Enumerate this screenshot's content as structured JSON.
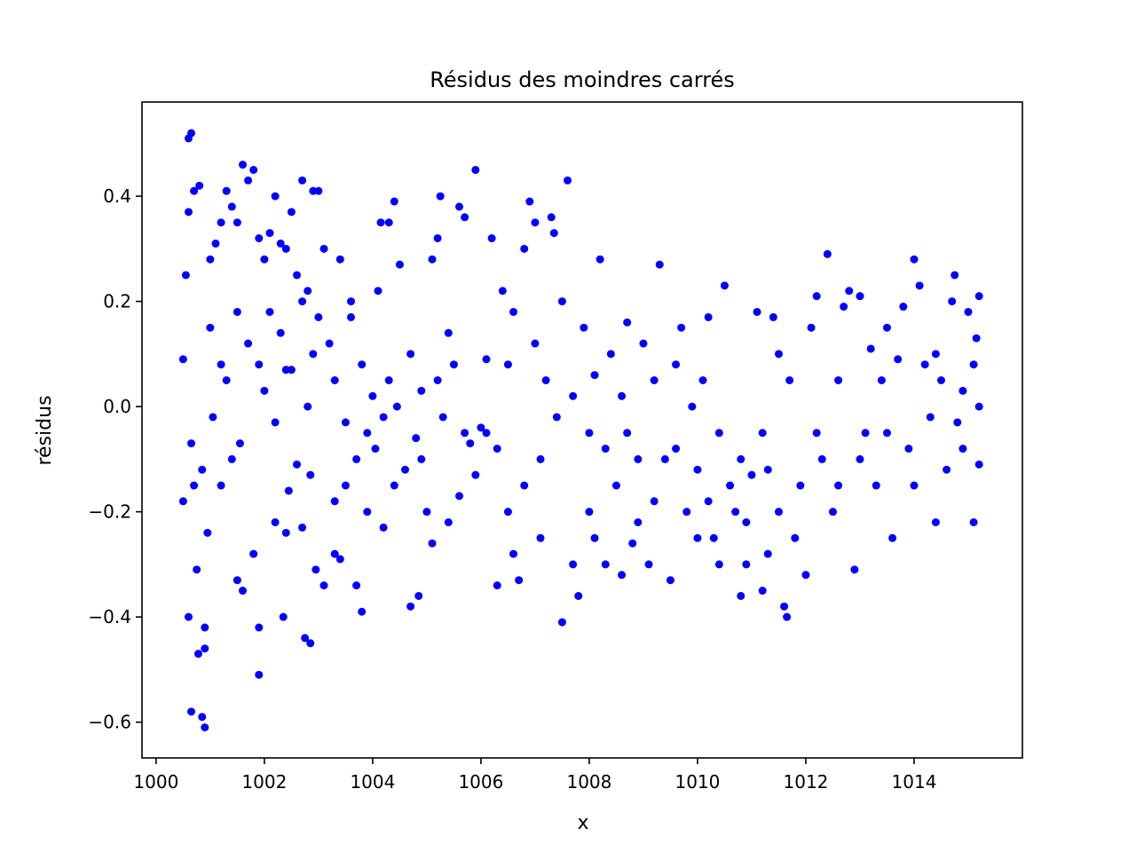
{
  "chart_data": {
    "type": "scatter",
    "title": "Résidus des moindres carrés",
    "xlabel": "x",
    "ylabel": "résidus",
    "color": "#0000ff",
    "x": [
      1000.5,
      1000.55,
      1000.6,
      1000.65,
      1000.6,
      1000.7,
      1000.8,
      1000.6,
      1000.65,
      1000.85,
      1000.9,
      1000.78,
      1000.9,
      1000.9,
      1000.75,
      1000.95,
      1000.5,
      1000.7,
      1000.65,
      1000.85,
      1001.0,
      1001.1,
      1001.2,
      1001.3,
      1001.4,
      1001.5,
      1001.6,
      1001.7,
      1001.8,
      1001.9,
      1002.0,
      1002.1,
      1002.2,
      1002.3,
      1002.4,
      1002.5,
      1002.6,
      1002.7,
      1002.8,
      1002.9,
      1003.0,
      1003.1,
      1001.0,
      1001.2,
      1001.3,
      1001.5,
      1001.7,
      1001.9,
      1002.1,
      1002.3,
      1002.5,
      1002.7,
      1002.9,
      1003.0,
      1001.05,
      1001.2,
      1001.4,
      1001.5,
      1001.6,
      1001.8,
      1001.9,
      1001.9,
      1002.2,
      1002.35,
      1002.4,
      1002.45,
      1002.7,
      1002.75,
      1002.85,
      1002.95,
      1003.1,
      1003.3,
      1003.4,
      1002.6,
      1002.85,
      1001.55,
      1002.0,
      1002.2,
      1002.4,
      1002.8,
      1003.2,
      1003.3,
      1003.5,
      1003.6,
      1003.7,
      1003.8,
      1003.9,
      1004.0,
      1004.1,
      1004.2,
      1004.3,
      1004.15,
      1004.3,
      1004.4,
      1004.5,
      1004.6,
      1004.7,
      1004.8,
      1004.9,
      1005.0,
      1005.1,
      1005.2,
      1005.25,
      1005.3,
      1005.4,
      1005.5,
      1005.6,
      1005.7,
      1005.8,
      1005.9,
      1006.0,
      1003.3,
      1003.5,
      1003.7,
      1003.8,
      1003.9,
      1004.2,
      1004.4,
      1004.7,
      1004.85,
      1005.1,
      1005.4,
      1005.6,
      1005.9,
      1003.4,
      1003.6,
      1004.05,
      1004.45,
      1004.9,
      1005.2,
      1005.7,
      1006.1,
      1006.2,
      1006.3,
      1006.4,
      1006.5,
      1006.6,
      1006.7,
      1006.8,
      1006.9,
      1007.0,
      1007.1,
      1007.2,
      1007.3,
      1007.35,
      1007.5,
      1007.6,
      1007.7,
      1007.8,
      1007.9,
      1008.0,
      1008.1,
      1008.2,
      1008.3,
      1008.4,
      1008.5,
      1008.6,
      1008.7,
      1008.8,
      1008.9,
      1009.0,
      1006.3,
      1006.5,
      1006.8,
      1007.1,
      1007.4,
      1007.7,
      1008.0,
      1008.3,
      1008.6,
      1008.9,
      1006.1,
      1006.6,
      1007.0,
      1007.5,
      1008.1,
      1008.7,
      1009.1,
      1009.2,
      1009.3,
      1009.4,
      1009.5,
      1009.6,
      1009.7,
      1009.8,
      1009.9,
      1010.0,
      1010.1,
      1010.2,
      1010.3,
      1010.4,
      1010.5,
      1010.6,
      1010.7,
      1010.8,
      1010.9,
      1011.0,
      1011.1,
      1011.2,
      1011.3,
      1011.4,
      1011.5,
      1011.6,
      1011.65,
      1011.7,
      1011.8,
      1011.9,
      1009.2,
      1009.6,
      1010.0,
      1010.4,
      1010.8,
      1011.2,
      1011.5,
      1010.2,
      1010.9,
      1011.3,
      1012.0,
      1012.1,
      1012.2,
      1012.3,
      1012.4,
      1012.5,
      1012.6,
      1012.7,
      1012.8,
      1012.9,
      1013.0,
      1013.1,
      1013.2,
      1013.3,
      1013.4,
      1013.5,
      1013.6,
      1013.7,
      1013.8,
      1013.9,
      1014.0,
      1014.1,
      1014.2,
      1014.3,
      1014.4,
      1014.5,
      1014.6,
      1014.7,
      1014.75,
      1014.8,
      1014.9,
      1015.0,
      1015.1,
      1015.15,
      1015.2,
      1015.2,
      1015.2,
      1012.2,
      1012.6,
      1013.0,
      1013.5,
      1014.0,
      1014.4,
      1014.9,
      1015.1
    ],
    "values": [
      0.09,
      0.25,
      0.51,
      0.52,
      0.37,
      0.41,
      0.42,
      -0.4,
      -0.58,
      -0.59,
      -0.61,
      -0.47,
      -0.42,
      -0.46,
      -0.31,
      -0.24,
      -0.18,
      -0.15,
      -0.07,
      -0.12,
      0.28,
      0.31,
      0.35,
      0.41,
      0.38,
      0.35,
      0.46,
      0.43,
      0.45,
      0.32,
      0.28,
      0.33,
      0.4,
      0.31,
      0.3,
      0.37,
      0.25,
      0.43,
      0.22,
      0.41,
      0.41,
      0.3,
      0.15,
      0.08,
      0.05,
      0.18,
      0.12,
      0.08,
      0.18,
      0.14,
      0.07,
      0.2,
      0.1,
      0.17,
      -0.02,
      -0.15,
      -0.1,
      -0.33,
      -0.35,
      -0.28,
      -0.42,
      -0.51,
      -0.22,
      -0.4,
      -0.24,
      -0.16,
      -0.23,
      -0.44,
      -0.45,
      -0.31,
      -0.34,
      -0.28,
      -0.29,
      -0.11,
      -0.13,
      -0.07,
      0.03,
      -0.03,
      0.07,
      0.0,
      0.12,
      0.05,
      -0.03,
      0.17,
      -0.1,
      0.08,
      -0.05,
      0.02,
      0.22,
      -0.02,
      0.05,
      0.35,
      0.35,
      0.39,
      0.27,
      -0.12,
      0.1,
      -0.06,
      0.03,
      -0.2,
      0.28,
      0.32,
      0.4,
      -0.02,
      0.14,
      0.08,
      0.38,
      0.36,
      -0.07,
      0.45,
      -0.04,
      -0.18,
      -0.15,
      -0.34,
      -0.39,
      -0.2,
      -0.23,
      -0.15,
      -0.38,
      -0.36,
      -0.26,
      -0.22,
      -0.17,
      -0.13,
      0.28,
      0.2,
      -0.08,
      0.0,
      -0.1,
      0.05,
      -0.05,
      0.09,
      0.32,
      -0.08,
      0.22,
      -0.2,
      0.18,
      -0.33,
      0.3,
      0.39,
      0.35,
      -0.1,
      0.05,
      0.36,
      0.33,
      -0.41,
      0.43,
      -0.3,
      -0.36,
      0.15,
      -0.05,
      -0.25,
      0.28,
      -0.3,
      0.1,
      -0.15,
      -0.32,
      0.16,
      -0.26,
      -0.1,
      0.12,
      -0.34,
      0.08,
      -0.15,
      -0.25,
      -0.02,
      0.02,
      -0.2,
      -0.08,
      0.02,
      -0.22,
      -0.05,
      -0.28,
      0.12,
      0.2,
      0.06,
      -0.05,
      -0.3,
      0.05,
      0.27,
      -0.1,
      -0.33,
      0.08,
      0.15,
      -0.2,
      0.0,
      -0.12,
      0.05,
      0.17,
      -0.25,
      -0.3,
      0.23,
      -0.15,
      -0.2,
      -0.36,
      -0.3,
      -0.13,
      0.18,
      -0.35,
      -0.28,
      0.17,
      -0.2,
      -0.38,
      -0.4,
      0.05,
      -0.25,
      -0.15,
      -0.18,
      -0.08,
      -0.25,
      -0.05,
      -0.1,
      -0.05,
      0.1,
      -0.18,
      -0.22,
      -0.12,
      -0.32,
      0.15,
      0.21,
      -0.1,
      0.29,
      -0.2,
      0.05,
      0.19,
      0.22,
      -0.31,
      0.21,
      -0.05,
      0.11,
      -0.15,
      0.05,
      0.15,
      -0.25,
      0.09,
      0.19,
      -0.08,
      0.28,
      0.23,
      0.08,
      -0.02,
      -0.22,
      0.05,
      -0.12,
      0.2,
      0.25,
      -0.03,
      0.03,
      0.18,
      -0.22,
      0.13,
      0.21,
      0.0,
      -0.11,
      -0.05,
      -0.15,
      -0.1,
      -0.05,
      -0.15,
      0.1,
      -0.08,
      0.08
    ],
    "xlim": [
      999.74,
      1016.0
    ],
    "ylim": [
      -0.668,
      0.579
    ],
    "xticks": [
      1000,
      1002,
      1004,
      1006,
      1008,
      1010,
      1012,
      1014
    ],
    "yticks": [
      {
        "value": -0.6,
        "label": "−0.6"
      },
      {
        "value": -0.4,
        "label": "−0.4"
      },
      {
        "value": -0.2,
        "label": "−0.2"
      },
      {
        "value": 0,
        "label": "0.0"
      },
      0.2,
      0.4
    ]
  }
}
